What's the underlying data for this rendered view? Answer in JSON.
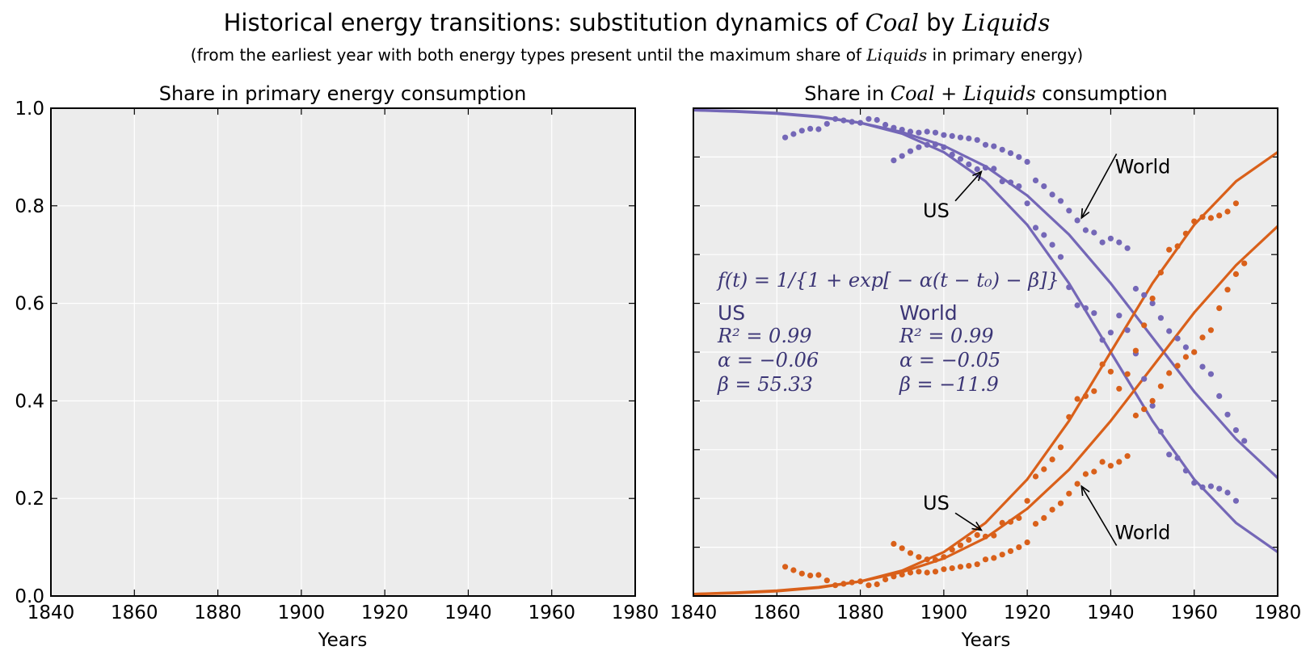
{
  "figure": {
    "title_pre": "Historical energy transitions: substitution dynamics of ",
    "title_a": "Coal",
    "title_mid": " by ",
    "title_b": "Liquids",
    "subtitle_pre": "(from the earliest year with both energy types present until the maximum share of ",
    "subtitle_math": "Liquids",
    "subtitle_post": " in primary energy)"
  },
  "colors": {
    "coal": "#7467b7",
    "liquids": "#d9601a",
    "panel_bg": "#ececec",
    "stats": "#3b3575"
  },
  "chart_data": [
    {
      "type": "scatter",
      "title": "Share in primary energy consumption",
      "xlabel": "Years",
      "ylabel": "",
      "xlim": [
        1840,
        1980
      ],
      "ylim": [
        0,
        1
      ],
      "x_ticks": [
        "1840",
        "1860",
        "1880",
        "1900",
        "1920",
        "1940",
        "1960",
        "1980"
      ],
      "y_ticks": [
        "0.0",
        "0.2",
        "0.4",
        "0.6",
        "0.8",
        "1.0"
      ],
      "grid": true,
      "series": []
    },
    {
      "type": "scatter",
      "title_pre": "Share in ",
      "title_math": "Coal + Liquids",
      "title_post": " consumption",
      "xlabel": "Years",
      "ylabel": "",
      "xlim": [
        1840,
        1980
      ],
      "ylim": [
        0,
        1
      ],
      "x_ticks": [
        "1840",
        "1860",
        "1880",
        "1900",
        "1920",
        "1940",
        "1960",
        "1980"
      ],
      "grid": true,
      "series": [
        {
          "region": "US",
          "fuel": "coal",
          "points": [
            [
              1888,
              0.893
            ],
            [
              1890,
              0.902
            ],
            [
              1892,
              0.912
            ],
            [
              1894,
              0.92
            ],
            [
              1896,
              0.925
            ],
            [
              1898,
              0.926
            ],
            [
              1900,
              0.92
            ],
            [
              1902,
              0.905
            ],
            [
              1904,
              0.896
            ],
            [
              1906,
              0.885
            ],
            [
              1908,
              0.875
            ],
            [
              1910,
              0.878
            ],
            [
              1912,
              0.876
            ],
            [
              1914,
              0.85
            ],
            [
              1916,
              0.848
            ],
            [
              1918,
              0.84
            ],
            [
              1920,
              0.805
            ],
            [
              1922,
              0.755
            ],
            [
              1924,
              0.74
            ],
            [
              1926,
              0.72
            ],
            [
              1928,
              0.695
            ],
            [
              1930,
              0.633
            ],
            [
              1932,
              0.596
            ],
            [
              1934,
              0.59
            ],
            [
              1936,
              0.58
            ],
            [
              1938,
              0.525
            ],
            [
              1940,
              0.54
            ],
            [
              1942,
              0.575
            ],
            [
              1944,
              0.545
            ],
            [
              1946,
              0.497
            ],
            [
              1948,
              0.445
            ],
            [
              1950,
              0.39
            ],
            [
              1952,
              0.337
            ],
            [
              1954,
              0.29
            ],
            [
              1956,
              0.283
            ],
            [
              1958,
              0.257
            ],
            [
              1960,
              0.232
            ],
            [
              1962,
              0.223
            ],
            [
              1964,
              0.225
            ],
            [
              1966,
              0.22
            ],
            [
              1968,
              0.212
            ],
            [
              1970,
              0.195
            ]
          ]
        },
        {
          "region": "World",
          "fuel": "coal",
          "points": [
            [
              1862,
              0.94
            ],
            [
              1864,
              0.947
            ],
            [
              1866,
              0.954
            ],
            [
              1868,
              0.958
            ],
            [
              1870,
              0.957
            ],
            [
              1872,
              0.968
            ],
            [
              1874,
              0.978
            ],
            [
              1876,
              0.975
            ],
            [
              1878,
              0.972
            ],
            [
              1880,
              0.97
            ],
            [
              1882,
              0.978
            ],
            [
              1884,
              0.976
            ],
            [
              1886,
              0.966
            ],
            [
              1888,
              0.96
            ],
            [
              1890,
              0.956
            ],
            [
              1892,
              0.952
            ],
            [
              1894,
              0.95
            ],
            [
              1896,
              0.952
            ],
            [
              1898,
              0.95
            ],
            [
              1900,
              0.945
            ],
            [
              1902,
              0.943
            ],
            [
              1904,
              0.94
            ],
            [
              1906,
              0.938
            ],
            [
              1908,
              0.935
            ],
            [
              1910,
              0.925
            ],
            [
              1912,
              0.922
            ],
            [
              1914,
              0.915
            ],
            [
              1916,
              0.908
            ],
            [
              1918,
              0.9
            ],
            [
              1920,
              0.89
            ],
            [
              1922,
              0.852
            ],
            [
              1924,
              0.84
            ],
            [
              1926,
              0.823
            ],
            [
              1928,
              0.81
            ],
            [
              1930,
              0.79
            ],
            [
              1932,
              0.77
            ],
            [
              1934,
              0.75
            ],
            [
              1936,
              0.745
            ],
            [
              1938,
              0.725
            ],
            [
              1940,
              0.733
            ],
            [
              1942,
              0.725
            ],
            [
              1944,
              0.713
            ],
            [
              1946,
              0.63
            ],
            [
              1948,
              0.617
            ],
            [
              1950,
              0.6
            ],
            [
              1952,
              0.57
            ],
            [
              1954,
              0.543
            ],
            [
              1956,
              0.528
            ],
            [
              1958,
              0.51
            ],
            [
              1960,
              0.5
            ],
            [
              1962,
              0.47
            ],
            [
              1964,
              0.455
            ],
            [
              1966,
              0.41
            ],
            [
              1968,
              0.372
            ],
            [
              1970,
              0.34
            ],
            [
              1972,
              0.318
            ]
          ]
        },
        {
          "region": "US",
          "fuel": "liquids",
          "points": [
            [
              1888,
              0.107
            ],
            [
              1890,
              0.098
            ],
            [
              1892,
              0.088
            ],
            [
              1894,
              0.08
            ],
            [
              1896,
              0.075
            ],
            [
              1898,
              0.074
            ],
            [
              1900,
              0.08
            ],
            [
              1902,
              0.095
            ],
            [
              1904,
              0.104
            ],
            [
              1906,
              0.115
            ],
            [
              1908,
              0.125
            ],
            [
              1910,
              0.122
            ],
            [
              1912,
              0.124
            ],
            [
              1914,
              0.15
            ],
            [
              1916,
              0.152
            ],
            [
              1918,
              0.16
            ],
            [
              1920,
              0.195
            ],
            [
              1922,
              0.245
            ],
            [
              1924,
              0.26
            ],
            [
              1926,
              0.28
            ],
            [
              1928,
              0.305
            ],
            [
              1930,
              0.367
            ],
            [
              1932,
              0.404
            ],
            [
              1934,
              0.41
            ],
            [
              1936,
              0.42
            ],
            [
              1938,
              0.475
            ],
            [
              1940,
              0.46
            ],
            [
              1942,
              0.425
            ],
            [
              1944,
              0.455
            ],
            [
              1946,
              0.503
            ],
            [
              1948,
              0.555
            ],
            [
              1950,
              0.61
            ],
            [
              1952,
              0.663
            ],
            [
              1954,
              0.71
            ],
            [
              1956,
              0.717
            ],
            [
              1958,
              0.743
            ],
            [
              1960,
              0.768
            ],
            [
              1962,
              0.777
            ],
            [
              1964,
              0.775
            ],
            [
              1966,
              0.78
            ],
            [
              1968,
              0.788
            ],
            [
              1970,
              0.805
            ]
          ]
        },
        {
          "region": "World",
          "fuel": "liquids",
          "points": [
            [
              1862,
              0.06
            ],
            [
              1864,
              0.053
            ],
            [
              1866,
              0.046
            ],
            [
              1868,
              0.042
            ],
            [
              1870,
              0.043
            ],
            [
              1872,
              0.032
            ],
            [
              1874,
              0.022
            ],
            [
              1876,
              0.025
            ],
            [
              1878,
              0.028
            ],
            [
              1880,
              0.03
            ],
            [
              1882,
              0.022
            ],
            [
              1884,
              0.024
            ],
            [
              1886,
              0.034
            ],
            [
              1888,
              0.04
            ],
            [
              1890,
              0.044
            ],
            [
              1892,
              0.048
            ],
            [
              1894,
              0.05
            ],
            [
              1896,
              0.048
            ],
            [
              1898,
              0.05
            ],
            [
              1900,
              0.055
            ],
            [
              1902,
              0.057
            ],
            [
              1904,
              0.06
            ],
            [
              1906,
              0.062
            ],
            [
              1908,
              0.065
            ],
            [
              1910,
              0.075
            ],
            [
              1912,
              0.078
            ],
            [
              1914,
              0.085
            ],
            [
              1916,
              0.092
            ],
            [
              1918,
              0.1
            ],
            [
              1920,
              0.11
            ],
            [
              1922,
              0.148
            ],
            [
              1924,
              0.16
            ],
            [
              1926,
              0.177
            ],
            [
              1928,
              0.19
            ],
            [
              1930,
              0.21
            ],
            [
              1932,
              0.23
            ],
            [
              1934,
              0.25
            ],
            [
              1936,
              0.255
            ],
            [
              1938,
              0.275
            ],
            [
              1940,
              0.267
            ],
            [
              1942,
              0.275
            ],
            [
              1944,
              0.287
            ],
            [
              1946,
              0.37
            ],
            [
              1948,
              0.383
            ],
            [
              1950,
              0.4
            ],
            [
              1952,
              0.43
            ],
            [
              1954,
              0.457
            ],
            [
              1956,
              0.472
            ],
            [
              1958,
              0.49
            ],
            [
              1960,
              0.5
            ],
            [
              1962,
              0.53
            ],
            [
              1964,
              0.545
            ],
            [
              1966,
              0.59
            ],
            [
              1968,
              0.628
            ],
            [
              1970,
              0.66
            ],
            [
              1972,
              0.682
            ]
          ]
        }
      ],
      "fits": [
        {
          "region": "US",
          "fuel": "coal",
          "x": [
            1840,
            1850,
            1860,
            1870,
            1880,
            1890,
            1900,
            1910,
            1920,
            1930,
            1940,
            1950,
            1960,
            1970,
            1980
          ],
          "y": [
            0.996,
            0.994,
            0.99,
            0.983,
            0.97,
            0.948,
            0.91,
            0.85,
            0.761,
            0.641,
            0.5,
            0.359,
            0.239,
            0.15,
            0.09
          ]
        },
        {
          "region": "World",
          "fuel": "coal",
          "x": [
            1840,
            1850,
            1860,
            1870,
            1880,
            1890,
            1900,
            1910,
            1920,
            1930,
            1940,
            1950,
            1960,
            1970,
            1980
          ],
          "y": [
            0.996,
            0.993,
            0.989,
            0.982,
            0.97,
            0.951,
            0.923,
            0.881,
            0.821,
            0.741,
            0.641,
            0.53,
            0.419,
            0.322,
            0.242
          ]
        },
        {
          "region": "US",
          "fuel": "liquids",
          "x": [
            1840,
            1850,
            1860,
            1870,
            1880,
            1890,
            1900,
            1910,
            1920,
            1930,
            1940,
            1950,
            1960,
            1970,
            1980
          ],
          "y": [
            0.004,
            0.006,
            0.01,
            0.017,
            0.03,
            0.052,
            0.09,
            0.15,
            0.239,
            0.359,
            0.5,
            0.641,
            0.761,
            0.85,
            0.91
          ]
        },
        {
          "region": "World",
          "fuel": "liquids",
          "x": [
            1840,
            1850,
            1860,
            1870,
            1880,
            1890,
            1900,
            1910,
            1920,
            1930,
            1940,
            1950,
            1960,
            1970,
            1980
          ],
          "y": [
            0.004,
            0.007,
            0.011,
            0.018,
            0.03,
            0.049,
            0.077,
            0.119,
            0.179,
            0.259,
            0.359,
            0.47,
            0.581,
            0.678,
            0.758
          ]
        }
      ],
      "annotations": [
        {
          "label": "US",
          "text_at": [
            1895,
            0.79
          ],
          "arrow_to": [
            1909,
            0.87
          ]
        },
        {
          "label": "World",
          "text_at": [
            1941,
            0.88
          ],
          "arrow_to": [
            1933,
            0.775
          ]
        },
        {
          "label": "US",
          "text_at": [
            1895,
            0.19
          ],
          "arrow_to": [
            1909,
            0.135
          ]
        },
        {
          "label": "World",
          "text_at": [
            1941,
            0.13
          ],
          "arrow_to": [
            1933,
            0.225
          ]
        }
      ],
      "formula": "f(t) = 1/{1 + exp[ − α(t − t₀) − β]}",
      "fit_stats": [
        {
          "region": "US",
          "r2": "R² = 0.99",
          "alpha": "α = −0.06",
          "beta": "β = 55.33"
        },
        {
          "region": "World",
          "r2": "R² = 0.99",
          "alpha": "α = −0.05",
          "beta": "β = −11.9"
        }
      ]
    }
  ]
}
